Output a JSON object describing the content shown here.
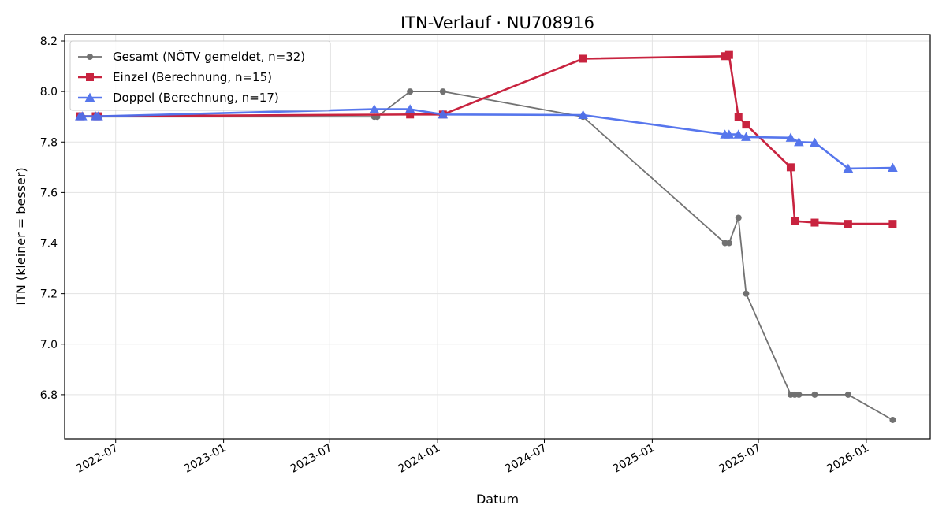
{
  "chart_data": {
    "type": "line",
    "title": "ITN-Verlauf · NU708916",
    "xlabel": "Datum",
    "ylabel": "ITN  (kleiner = besser)",
    "xlim": [
      "2022-04-05",
      "2026-04-20"
    ],
    "ylim": [
      6.625,
      8.225
    ],
    "x_ticks": [
      "2022-07-01",
      "2023-01-01",
      "2023-07-01",
      "2024-01-01",
      "2024-07-01",
      "2025-01-01",
      "2025-07-01",
      "2026-01-01"
    ],
    "x_tick_labels": [
      "2022-07",
      "2023-01",
      "2023-07",
      "2024-01",
      "2024-07",
      "2025-01",
      "2025-07",
      "2026-01"
    ],
    "y_ticks": [
      6.8,
      7.0,
      7.2,
      7.4,
      7.6,
      7.8,
      8.0,
      8.2
    ],
    "y_tick_labels": [
      "6.8",
      "7.0",
      "7.2",
      "7.4",
      "7.6",
      "7.8",
      "8.0",
      "8.2"
    ],
    "grid": true,
    "legend_position": "top-left",
    "series": [
      {
        "name": "Gesamt (NÖTV gemeldet, n=32)",
        "color": "#444444",
        "marker": "circle",
        "points": [
          [
            "2022-05-01",
            7.9
          ],
          [
            "2022-05-05",
            7.9
          ],
          [
            "2022-05-28",
            7.9
          ],
          [
            "2022-06-01",
            7.9
          ],
          [
            "2023-09-15",
            7.9
          ],
          [
            "2023-09-20",
            7.9
          ],
          [
            "2023-11-15",
            8.0
          ],
          [
            "2024-01-10",
            8.0
          ],
          [
            "2024-09-05",
            7.9
          ],
          [
            "2025-05-05",
            7.4
          ],
          [
            "2025-05-12",
            7.4
          ],
          [
            "2025-05-28",
            7.5
          ],
          [
            "2025-06-10",
            7.2
          ],
          [
            "2025-08-25",
            6.8
          ],
          [
            "2025-09-01",
            6.8
          ],
          [
            "2025-09-08",
            6.8
          ],
          [
            "2025-10-05",
            6.8
          ],
          [
            "2025-12-01",
            6.8
          ],
          [
            "2026-02-15",
            6.7
          ]
        ]
      },
      {
        "name": "Einzel (Berechnung, n=15)",
        "color": "#c8233f",
        "marker": "square",
        "points": [
          [
            "2022-05-01",
            7.902
          ],
          [
            "2022-05-28",
            7.902
          ],
          [
            "2022-06-01",
            7.902
          ],
          [
            "2023-11-15",
            7.909
          ],
          [
            "2024-01-10",
            7.909
          ],
          [
            "2024-09-05",
            8.13
          ],
          [
            "2025-05-05",
            8.14
          ],
          [
            "2025-05-12",
            8.145
          ],
          [
            "2025-05-28",
            7.898
          ],
          [
            "2025-06-10",
            7.869
          ],
          [
            "2025-08-25",
            7.7
          ],
          [
            "2025-09-01",
            7.487
          ],
          [
            "2025-10-05",
            7.481
          ],
          [
            "2025-12-01",
            7.476
          ],
          [
            "2026-02-15",
            7.476
          ]
        ]
      },
      {
        "name": "Doppel (Berechnung, n=17)",
        "color": "#4e6fec",
        "marker": "triangle",
        "points": [
          [
            "2022-05-01",
            7.902
          ],
          [
            "2022-05-05",
            7.902
          ],
          [
            "2022-05-28",
            7.902
          ],
          [
            "2022-06-01",
            7.902
          ],
          [
            "2023-09-15",
            7.93
          ],
          [
            "2023-11-15",
            7.93
          ],
          [
            "2024-01-10",
            7.909
          ],
          [
            "2024-09-05",
            7.907
          ],
          [
            "2025-05-05",
            7.83
          ],
          [
            "2025-05-12",
            7.83
          ],
          [
            "2025-05-28",
            7.83
          ],
          [
            "2025-06-10",
            7.82
          ],
          [
            "2025-08-25",
            7.817
          ],
          [
            "2025-09-08",
            7.8
          ],
          [
            "2025-10-05",
            7.798
          ],
          [
            "2025-12-01",
            7.695
          ],
          [
            "2026-02-15",
            7.698
          ]
        ]
      }
    ]
  }
}
